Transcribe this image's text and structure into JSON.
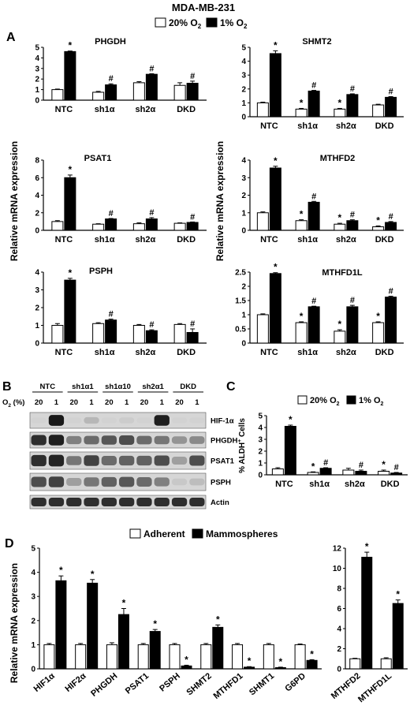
{
  "figure": {
    "title": "MDA-MB-231",
    "legend_top": {
      "normoxia": "20% O",
      "hypoxia": "1% O",
      "sub": "2"
    },
    "panels": {
      "A": "A",
      "B": "B",
      "C": "C",
      "D": "D"
    }
  },
  "chart_data": [
    {
      "id": "phgdh",
      "type": "bar",
      "title": "PHGDH",
      "categories": [
        "NTC",
        "sh1α",
        "sh2α",
        "DKD"
      ],
      "series": [
        {
          "name": "20% O2",
          "values": [
            1.0,
            0.75,
            1.65,
            1.4
          ]
        },
        {
          "name": "1% O2",
          "values": [
            4.6,
            1.45,
            2.45,
            1.6
          ]
        }
      ],
      "errors": [
        [
          0.05,
          0.08,
          0.1,
          0.25
        ],
        [
          0.05,
          0.1,
          0.05,
          0.2
        ]
      ],
      "marks": [
        [
          null,
          null,
          null,
          null
        ],
        [
          "*",
          "#",
          "#",
          "#"
        ]
      ],
      "ylim": [
        0,
        5
      ],
      "yticks": [
        "0",
        "1",
        "2",
        "3",
        "4",
        "5"
      ]
    },
    {
      "id": "shmt2",
      "type": "bar",
      "title": "SHMT2",
      "categories": [
        "NTC",
        "sh1α",
        "sh2α",
        "DKD"
      ],
      "series": [
        {
          "name": "20% O2",
          "values": [
            1.0,
            0.55,
            0.55,
            0.85
          ]
        },
        {
          "name": "1% O2",
          "values": [
            4.55,
            1.85,
            1.6,
            1.4
          ]
        }
      ],
      "errors": [
        [
          0.05,
          0.05,
          0.05,
          0.05
        ],
        [
          0.2,
          0.05,
          0.05,
          0.05
        ]
      ],
      "marks": [
        [
          null,
          "*",
          "*",
          null
        ],
        [
          "*",
          "#",
          "#",
          "#"
        ]
      ],
      "ylim": [
        0,
        5
      ],
      "yticks": [
        "0",
        "1",
        "2",
        "3",
        "4",
        "5"
      ]
    },
    {
      "id": "psat1",
      "type": "bar",
      "title": "PSAT1",
      "categories": [
        "NTC",
        "sh1α",
        "sh2α",
        "DKD"
      ],
      "series": [
        {
          "name": "20% O2",
          "values": [
            1.0,
            0.7,
            0.75,
            0.8
          ]
        },
        {
          "name": "1% O2",
          "values": [
            6.0,
            1.3,
            1.3,
            0.9
          ]
        }
      ],
      "errors": [
        [
          0.1,
          0.05,
          0.1,
          0.05
        ],
        [
          0.3,
          0.05,
          0.15,
          0.05
        ]
      ],
      "marks": [
        [
          null,
          null,
          null,
          null
        ],
        [
          "*",
          "#",
          "#",
          "#"
        ]
      ],
      "ylim": [
        0,
        8
      ],
      "yticks": [
        "0",
        "2",
        "4",
        "6",
        "8"
      ]
    },
    {
      "id": "mthfd2",
      "type": "bar",
      "title": "MTHFD2",
      "categories": [
        "NTC",
        "sh1α",
        "sh2α",
        "DKD"
      ],
      "series": [
        {
          "name": "20% O2",
          "values": [
            1.0,
            0.55,
            0.35,
            0.2
          ]
        },
        {
          "name": "1% O2",
          "values": [
            3.55,
            1.6,
            0.55,
            0.45
          ]
        }
      ],
      "errors": [
        [
          0.05,
          0.05,
          0.05,
          0.05
        ],
        [
          0.1,
          0.05,
          0.05,
          0.05
        ]
      ],
      "marks": [
        [
          null,
          "*",
          "*",
          "*"
        ],
        [
          "*",
          "#",
          "#",
          "#"
        ]
      ],
      "ylim": [
        0,
        4
      ],
      "yticks": [
        "0",
        "1",
        "2",
        "3",
        "4"
      ]
    },
    {
      "id": "psph",
      "type": "bar",
      "title": "PSPH",
      "categories": [
        "NTC",
        "sh1α",
        "sh2α",
        "DKD"
      ],
      "series": [
        {
          "name": "20% O2",
          "values": [
            1.0,
            1.1,
            1.0,
            1.05
          ]
        },
        {
          "name": "1% O2",
          "values": [
            3.55,
            1.3,
            0.7,
            0.6
          ]
        }
      ],
      "errors": [
        [
          0.1,
          0.05,
          0.05,
          0.05
        ],
        [
          0.1,
          0.05,
          0.05,
          0.2
        ]
      ],
      "marks": [
        [
          null,
          null,
          null,
          null
        ],
        [
          "*",
          "#",
          "#",
          "#"
        ]
      ],
      "ylim": [
        0,
        4
      ],
      "yticks": [
        "0",
        "1",
        "2",
        "3",
        "4"
      ]
    },
    {
      "id": "mthfd1l",
      "type": "bar",
      "title": "MTHFD1L",
      "categories": [
        "NTC",
        "sh1α",
        "sh2α",
        "DKD"
      ],
      "series": [
        {
          "name": "20% O2",
          "values": [
            1.0,
            0.72,
            0.42,
            0.72
          ]
        },
        {
          "name": "1% O2",
          "values": [
            2.45,
            1.28,
            1.28,
            1.62
          ]
        }
      ],
      "errors": [
        [
          0.03,
          0.03,
          0.05,
          0.03
        ],
        [
          0.03,
          0.02,
          0.05,
          0.03
        ]
      ],
      "marks": [
        [
          null,
          "*",
          "*",
          "*"
        ],
        [
          "*",
          "#",
          "#",
          "#"
        ]
      ],
      "ylim": [
        0,
        2.5
      ],
      "yticks": [
        "0",
        "0.5",
        "1",
        "1.5",
        "2",
        "2.5"
      ]
    },
    {
      "id": "aldh",
      "type": "bar",
      "title": "",
      "categories": [
        "NTC",
        "sh1α",
        "sh2α",
        "DKD"
      ],
      "series": [
        {
          "name": "20% O2",
          "values": [
            0.5,
            0.2,
            0.4,
            0.3
          ]
        },
        {
          "name": "1% O2",
          "values": [
            4.1,
            0.55,
            0.3,
            0.15
          ]
        }
      ],
      "errors": [
        [
          0.1,
          0.05,
          0.15,
          0.1
        ],
        [
          0.1,
          0.05,
          0.1,
          0.05
        ]
      ],
      "marks": [
        [
          null,
          "*",
          null,
          "*"
        ],
        [
          "*",
          "#",
          "#",
          "#"
        ]
      ],
      "ylim": [
        0,
        5
      ],
      "yticks": [
        "0",
        "1",
        "2",
        "3",
        "4",
        "5"
      ]
    },
    {
      "id": "mammo1",
      "type": "bar",
      "title": "",
      "categories": [
        "HIF1α",
        "HIF2α",
        "PHGDH",
        "PSAT1",
        "PSPH",
        "SHMT2",
        "MTHFD1",
        "SHMT1",
        "G6PD"
      ],
      "series": [
        {
          "name": "Adherent",
          "values": [
            1.0,
            1.0,
            1.0,
            1.0,
            1.0,
            1.0,
            1.0,
            1.0,
            1.0
          ]
        },
        {
          "name": "Mammospheres",
          "values": [
            3.65,
            3.55,
            2.25,
            1.55,
            0.12,
            1.72,
            0.07,
            0.05,
            0.35
          ]
        }
      ],
      "errors": [
        [
          0.05,
          0.05,
          0.08,
          0.05,
          0.05,
          0.05,
          0.05,
          0.05,
          0.03
        ],
        [
          0.2,
          0.15,
          0.25,
          0.08,
          0.03,
          0.1,
          0.02,
          0.02,
          0.03
        ]
      ],
      "marks": [
        [
          null,
          null,
          null,
          null,
          null,
          null,
          null,
          null,
          null
        ],
        [
          "*",
          "*",
          "*",
          "*",
          "*",
          "*",
          "*",
          "*",
          "*"
        ]
      ],
      "ylim": [
        0,
        5
      ],
      "yticks": [
        "0",
        "1",
        "2",
        "3",
        "4",
        "5"
      ]
    },
    {
      "id": "mammo2",
      "type": "bar",
      "title": "",
      "categories": [
        "MTHFD2",
        "MTHFD1L"
      ],
      "series": [
        {
          "name": "Adherent",
          "values": [
            1.0,
            1.0
          ]
        },
        {
          "name": "Mammospheres",
          "values": [
            11.1,
            6.5
          ]
        }
      ],
      "errors": [
        [
          0.05,
          0.1
        ],
        [
          0.5,
          0.35
        ]
      ],
      "marks": [
        [
          null,
          null
        ],
        [
          "*",
          "*"
        ]
      ],
      "ylim": [
        0,
        12
      ],
      "yticks": [
        "0",
        "2",
        "4",
        "6",
        "8",
        "10",
        "12"
      ]
    }
  ],
  "y_labels": {
    "A": "Relative mRNA expression",
    "C": "% ALDH",
    "C_sup": "+",
    "C_end": " Cells",
    "D": "Relative mRNA expression"
  },
  "legend_c": {
    "normoxia": "20% O",
    "hypoxia": "1% O",
    "sub": "2"
  },
  "legend_d": {
    "adherent": "Adherent",
    "mammospheres": "Mammospheres"
  },
  "blot": {
    "groups": [
      "NTC",
      "sh1α1",
      "sh1α10",
      "sh2α1",
      "DKD"
    ],
    "o2_label": "O (%)",
    "o2_sub": "2",
    "lanes": [
      "20",
      "1",
      "20",
      "1",
      "20",
      "1",
      "20",
      "1",
      "20",
      "1"
    ],
    "proteins": [
      "HIF-1α",
      "PHGDH",
      "PSAT1",
      "PSPH",
      "Actin"
    ],
    "intensity": [
      [
        0.05,
        0.95,
        0.05,
        0.18,
        0.05,
        0.08,
        0.05,
        0.92,
        0.05,
        0.05
      ],
      [
        0.85,
        0.92,
        0.45,
        0.55,
        0.65,
        0.7,
        0.55,
        0.5,
        0.35,
        0.4
      ],
      [
        0.85,
        0.9,
        0.5,
        0.75,
        0.55,
        0.6,
        0.6,
        0.7,
        0.3,
        0.7
      ],
      [
        0.7,
        0.75,
        0.3,
        0.5,
        0.6,
        0.65,
        0.55,
        0.45,
        0.1,
        0.15
      ],
      [
        0.85,
        0.85,
        0.85,
        0.85,
        0.85,
        0.85,
        0.85,
        0.85,
        0.85,
        0.85
      ]
    ]
  }
}
